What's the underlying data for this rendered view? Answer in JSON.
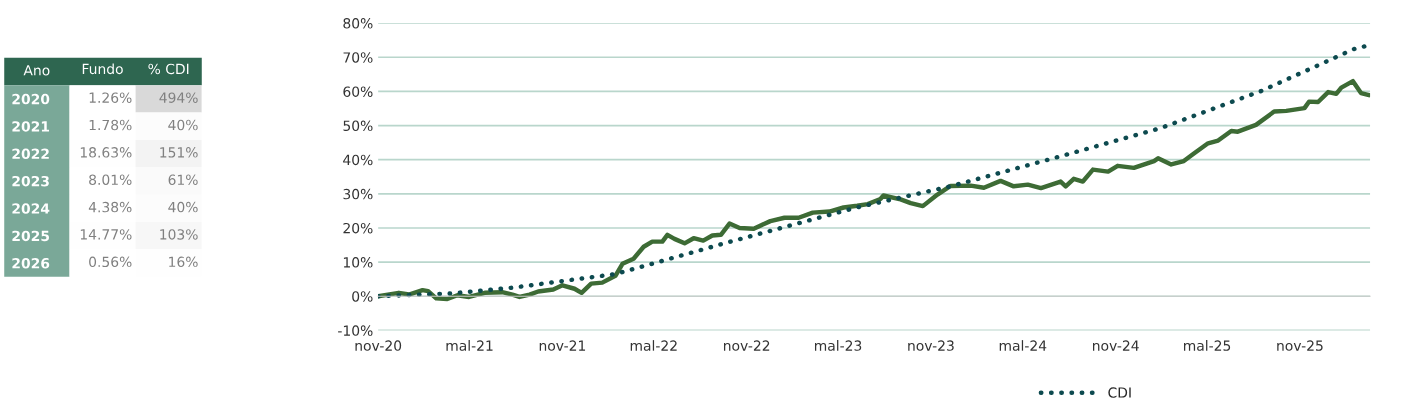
{
  "chart_data": [
    {
      "type": "heatmap",
      "ylabel": "Ano",
      "categories": [
        "Fundo",
        "% CDI"
      ],
      "y_categories": [
        "2020",
        "2021",
        "2022",
        "2023",
        "2024",
        "2025",
        "2026"
      ],
      "cells": [
        [
          1.26,
          494
        ],
        [
          1.78,
          40
        ],
        [
          18.63,
          151
        ],
        [
          8.01,
          61
        ],
        [
          4.38,
          40
        ],
        [
          14.77,
          103
        ],
        [
          0.56,
          16
        ]
      ],
      "cell_labels": [
        [
          "1.26%",
          "494%"
        ],
        [
          "1.78%",
          "40%"
        ],
        [
          "18.63%",
          "151%"
        ],
        [
          "8.01%",
          "61%"
        ],
        [
          "4.38%",
          "40%"
        ],
        [
          "14.77%",
          "103%"
        ],
        [
          "0.56%",
          "16%"
        ]
      ]
    },
    {
      "type": "line",
      "xlim": [
        "2020-11-01",
        "2026-03-20"
      ],
      "xticks": [
        {
          "value": "2020-11-01",
          "label": "nov-20"
        },
        {
          "value": "2021-05-01",
          "label": "mal-21"
        },
        {
          "value": "2021-11-01",
          "label": "nov-21"
        },
        {
          "value": "2022-05-01",
          "label": "mal-22"
        },
        {
          "value": "2022-11-01",
          "label": "nov-22"
        },
        {
          "value": "2023-05-01",
          "label": "mal-23"
        },
        {
          "value": "2023-11-01",
          "label": "nov-23"
        },
        {
          "value": "2024-05-01",
          "label": "mal-24"
        },
        {
          "value": "2024-11-01",
          "label": "nov-24"
        },
        {
          "value": "2025-05-01",
          "label": "mal-25"
        },
        {
          "value": "2025-11-01",
          "label": "nov-25"
        }
      ],
      "ylim": [
        -10,
        80
      ],
      "yticks": [
        {
          "value": -10,
          "label": "-10%"
        },
        {
          "value": 0,
          "label": "0%"
        },
        {
          "value": 10,
          "label": "10%"
        },
        {
          "value": 20,
          "label": "20%"
        },
        {
          "value": 30,
          "label": "30%"
        },
        {
          "value": 40,
          "label": "40%"
        },
        {
          "value": 50,
          "label": "50%"
        },
        {
          "value": 60,
          "label": "60%"
        },
        {
          "value": 70,
          "label": "70%"
        },
        {
          "value": 80,
          "label": "80%"
        }
      ],
      "grid": "y",
      "legend": "bottom",
      "series": [
        {
          "color": "#3d6b35",
          "line_style": "solid",
          "x": [
            "2020-11-01",
            "2020-12-12",
            "2021-01-01",
            "2021-01-28",
            "2021-02-08",
            "2021-02-24",
            "2021-03-18",
            "2021-04-07",
            "2021-04-30",
            "2021-05-31",
            "2021-07-05",
            "2021-07-25",
            "2021-08-08",
            "2021-08-28",
            "2021-09-14",
            "2021-10-14",
            "2021-11-01",
            "2021-11-25",
            "2021-12-09",
            "2021-12-28",
            "2022-01-19",
            "2022-02-14",
            "2022-02-28",
            "2022-03-22",
            "2022-04-11",
            "2022-04-28",
            "2022-05-18",
            "2022-05-28",
            "2022-06-11",
            "2022-07-01",
            "2022-07-19",
            "2022-08-07",
            "2022-08-25",
            "2022-09-11",
            "2022-09-28",
            "2022-10-18",
            "2022-11-15",
            "2022-12-18",
            "2023-01-15",
            "2023-02-12",
            "2023-03-12",
            "2023-04-14",
            "2023-05-12",
            "2023-06-08",
            "2023-06-29",
            "2023-07-24",
            "2023-07-30",
            "2023-09-02",
            "2023-09-22",
            "2023-10-16",
            "2023-11-14",
            "2023-12-10",
            "2024-01-19",
            "2024-02-14",
            "2024-03-18",
            "2024-04-13",
            "2024-05-11",
            "2024-06-06",
            "2024-07-15",
            "2024-07-25",
            "2024-08-10",
            "2024-08-28",
            "2024-09-17",
            "2024-10-17",
            "2024-11-05",
            "2024-12-07",
            "2025-01-16",
            "2025-01-24",
            "2025-02-19",
            "2025-03-16",
            "2025-04-05",
            "2025-05-03",
            "2025-05-23",
            "2025-06-18",
            "2025-07-01",
            "2025-08-06",
            "2025-09-11",
            "2025-10-05",
            "2025-11-10",
            "2025-11-19",
            "2025-12-07",
            "2025-12-27",
            "2026-01-12",
            "2026-01-22",
            "2026-02-14",
            "2026-03-02",
            "2026-03-18"
          ],
          "values": [
            0,
            1.0,
            0.5,
            1.8,
            1.5,
            -0.6,
            -0.8,
            0.3,
            -0.2,
            1.0,
            1.2,
            0.5,
            -0.2,
            0.5,
            1.4,
            2.0,
            3.2,
            2.2,
            1.0,
            3.7,
            4.0,
            6.0,
            9.5,
            11,
            14.5,
            16,
            16,
            18,
            16.8,
            15.5,
            17,
            16.3,
            17.8,
            18,
            21.3,
            20,
            19.8,
            22,
            23,
            23,
            24.5,
            24.8,
            26,
            26.5,
            27,
            28.5,
            29.5,
            28.4,
            27.3,
            26.4,
            29.8,
            32.3,
            32.4,
            31.8,
            33.8,
            32.2,
            32.7,
            31.7,
            33.6,
            32.2,
            34.4,
            33.6,
            37.1,
            36.5,
            38.2,
            37.6,
            39.6,
            40.4,
            38.6,
            39.6,
            41.8,
            44.8,
            45.6,
            48.4,
            48.2,
            50.2,
            54.1,
            54.3,
            55.1,
            57.0,
            56.9,
            59.8,
            59.3,
            61.1,
            63.0,
            59.5,
            58.9
          ]
        },
        {
          "name": "CDI",
          "color": "#0d4a4f",
          "line_style": "dotted",
          "x": [
            "2020-11-01",
            "2021-03-24",
            "2021-07-25",
            "2022-02-14",
            "2022-09-30",
            "2023-06-07",
            "2023-12-10",
            "2024-07-15",
            "2025-01-30",
            "2025-08-16",
            "2026-02-16",
            "2026-03-12"
          ],
          "values": [
            0,
            0.8,
            2.5,
            6.5,
            16,
            26,
            32.2,
            41,
            49.3,
            60.1,
            72.4,
            73.3
          ]
        }
      ]
    }
  ]
}
